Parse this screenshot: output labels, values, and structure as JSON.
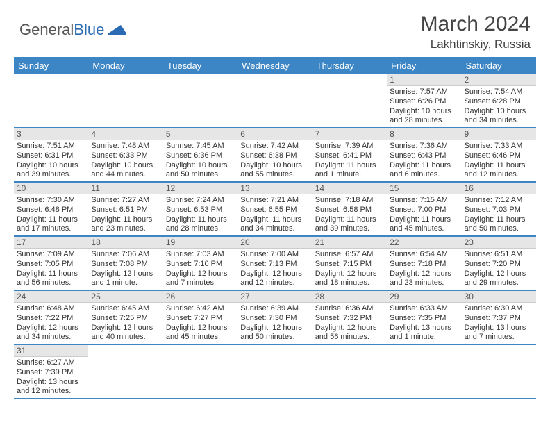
{
  "logo": {
    "word1": "General",
    "word2": "Blue"
  },
  "header": {
    "month_title": "March 2024",
    "location": "Lakhtinskiy, Russia"
  },
  "colors": {
    "header_bg": "#3d86c6",
    "row_divider": "#3d86c6",
    "daynum_bg": "#e6e6e6",
    "logo_gray": "#555555",
    "logo_blue": "#2a6bb3"
  },
  "weekdays": [
    "Sunday",
    "Monday",
    "Tuesday",
    "Wednesday",
    "Thursday",
    "Friday",
    "Saturday"
  ],
  "grid_rows": 6,
  "grid_cols": 7,
  "first_weekday_index": 5,
  "days": [
    {
      "n": 1,
      "sunrise": "7:57 AM",
      "sunset": "6:26 PM",
      "daylight": "10 hours and 28 minutes."
    },
    {
      "n": 2,
      "sunrise": "7:54 AM",
      "sunset": "6:28 PM",
      "daylight": "10 hours and 34 minutes."
    },
    {
      "n": 3,
      "sunrise": "7:51 AM",
      "sunset": "6:31 PM",
      "daylight": "10 hours and 39 minutes."
    },
    {
      "n": 4,
      "sunrise": "7:48 AM",
      "sunset": "6:33 PM",
      "daylight": "10 hours and 44 minutes."
    },
    {
      "n": 5,
      "sunrise": "7:45 AM",
      "sunset": "6:36 PM",
      "daylight": "10 hours and 50 minutes."
    },
    {
      "n": 6,
      "sunrise": "7:42 AM",
      "sunset": "6:38 PM",
      "daylight": "10 hours and 55 minutes."
    },
    {
      "n": 7,
      "sunrise": "7:39 AM",
      "sunset": "6:41 PM",
      "daylight": "11 hours and 1 minute."
    },
    {
      "n": 8,
      "sunrise": "7:36 AM",
      "sunset": "6:43 PM",
      "daylight": "11 hours and 6 minutes."
    },
    {
      "n": 9,
      "sunrise": "7:33 AM",
      "sunset": "6:46 PM",
      "daylight": "11 hours and 12 minutes."
    },
    {
      "n": 10,
      "sunrise": "7:30 AM",
      "sunset": "6:48 PM",
      "daylight": "11 hours and 17 minutes."
    },
    {
      "n": 11,
      "sunrise": "7:27 AM",
      "sunset": "6:51 PM",
      "daylight": "11 hours and 23 minutes."
    },
    {
      "n": 12,
      "sunrise": "7:24 AM",
      "sunset": "6:53 PM",
      "daylight": "11 hours and 28 minutes."
    },
    {
      "n": 13,
      "sunrise": "7:21 AM",
      "sunset": "6:55 PM",
      "daylight": "11 hours and 34 minutes."
    },
    {
      "n": 14,
      "sunrise": "7:18 AM",
      "sunset": "6:58 PM",
      "daylight": "11 hours and 39 minutes."
    },
    {
      "n": 15,
      "sunrise": "7:15 AM",
      "sunset": "7:00 PM",
      "daylight": "11 hours and 45 minutes."
    },
    {
      "n": 16,
      "sunrise": "7:12 AM",
      "sunset": "7:03 PM",
      "daylight": "11 hours and 50 minutes."
    },
    {
      "n": 17,
      "sunrise": "7:09 AM",
      "sunset": "7:05 PM",
      "daylight": "11 hours and 56 minutes."
    },
    {
      "n": 18,
      "sunrise": "7:06 AM",
      "sunset": "7:08 PM",
      "daylight": "12 hours and 1 minute."
    },
    {
      "n": 19,
      "sunrise": "7:03 AM",
      "sunset": "7:10 PM",
      "daylight": "12 hours and 7 minutes."
    },
    {
      "n": 20,
      "sunrise": "7:00 AM",
      "sunset": "7:13 PM",
      "daylight": "12 hours and 12 minutes."
    },
    {
      "n": 21,
      "sunrise": "6:57 AM",
      "sunset": "7:15 PM",
      "daylight": "12 hours and 18 minutes."
    },
    {
      "n": 22,
      "sunrise": "6:54 AM",
      "sunset": "7:18 PM",
      "daylight": "12 hours and 23 minutes."
    },
    {
      "n": 23,
      "sunrise": "6:51 AM",
      "sunset": "7:20 PM",
      "daylight": "12 hours and 29 minutes."
    },
    {
      "n": 24,
      "sunrise": "6:48 AM",
      "sunset": "7:22 PM",
      "daylight": "12 hours and 34 minutes."
    },
    {
      "n": 25,
      "sunrise": "6:45 AM",
      "sunset": "7:25 PM",
      "daylight": "12 hours and 40 minutes."
    },
    {
      "n": 26,
      "sunrise": "6:42 AM",
      "sunset": "7:27 PM",
      "daylight": "12 hours and 45 minutes."
    },
    {
      "n": 27,
      "sunrise": "6:39 AM",
      "sunset": "7:30 PM",
      "daylight": "12 hours and 50 minutes."
    },
    {
      "n": 28,
      "sunrise": "6:36 AM",
      "sunset": "7:32 PM",
      "daylight": "12 hours and 56 minutes."
    },
    {
      "n": 29,
      "sunrise": "6:33 AM",
      "sunset": "7:35 PM",
      "daylight": "13 hours and 1 minute."
    },
    {
      "n": 30,
      "sunrise": "6:30 AM",
      "sunset": "7:37 PM",
      "daylight": "13 hours and 7 minutes."
    },
    {
      "n": 31,
      "sunrise": "6:27 AM",
      "sunset": "7:39 PM",
      "daylight": "13 hours and 12 minutes."
    }
  ],
  "labels": {
    "sunrise_prefix": "Sunrise: ",
    "sunset_prefix": "Sunset: ",
    "daylight_prefix": "Daylight: "
  }
}
